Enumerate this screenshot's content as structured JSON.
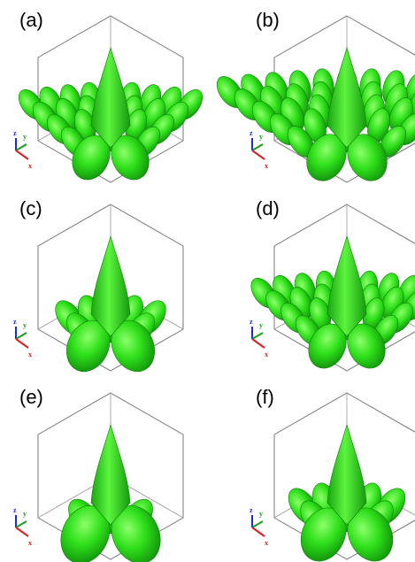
{
  "panels": [
    {
      "label": "(a)"
    },
    {
      "label": "(b)"
    },
    {
      "label": "(c)"
    },
    {
      "label": "(d)"
    },
    {
      "label": "(e)"
    },
    {
      "label": "(f)"
    }
  ],
  "axis_labels": {
    "z": "z",
    "y": "y",
    "x": "x"
  }
}
